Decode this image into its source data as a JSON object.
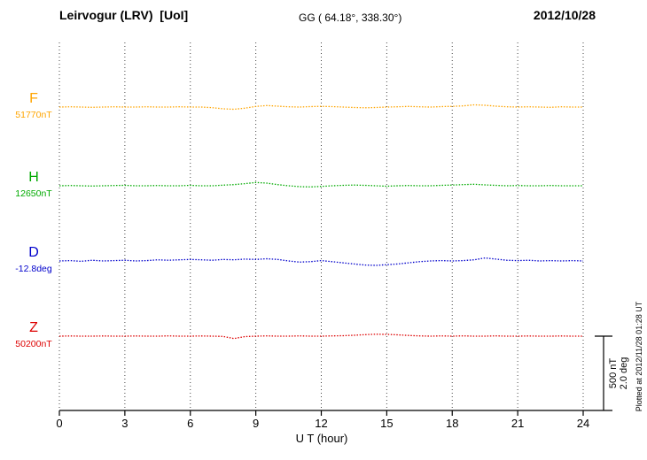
{
  "header": {
    "station_title": "Leirvogur (LRV)  [UoI]",
    "gg_coords": "GG ( 64.18°, 338.30°)",
    "date": "2012/10/28"
  },
  "footer": {
    "x_axis_label": "U T (hour)"
  },
  "side": {
    "scale_nt": "500 nT",
    "scale_deg": "2.0 deg",
    "plotted_at": "Plotted at 2012/11/28 01:28 UT"
  },
  "chart_data": {
    "type": "line",
    "title": "Leirvogur (LRV) magnetogram 2012/10/28",
    "xlabel": "U T (hour)",
    "x_range": [
      0,
      24
    ],
    "x_ticks": [
      0,
      3,
      6,
      9,
      12,
      15,
      18,
      21,
      24
    ],
    "grid": "vertical-dotted",
    "x_step": 0.5,
    "scale": {
      "nT_per_div": 500,
      "deg_per_div": 2.0
    },
    "series": [
      {
        "name": "F",
        "baseline_label": "51770nT",
        "baseline_value": 51770,
        "unit": "nT",
        "color": "#FFA500",
        "dev": [
          0,
          2,
          0,
          -2,
          0,
          2,
          0,
          0,
          2,
          0,
          0,
          2,
          0,
          0,
          -4,
          -12,
          -15,
          -8,
          4,
          10,
          6,
          2,
          0,
          3,
          5,
          3,
          0,
          -3,
          -5,
          -3,
          0,
          2,
          4,
          2,
          0,
          3,
          5,
          8,
          15,
          12,
          6,
          2,
          0,
          2,
          0,
          -2,
          2,
          0,
          0
        ]
      },
      {
        "name": "H",
        "baseline_label": "12650nT",
        "baseline_value": 12650,
        "unit": "nT",
        "color": "#00AA00",
        "dev": [
          0,
          2,
          0,
          -2,
          0,
          2,
          3,
          0,
          0,
          2,
          0,
          0,
          3,
          0,
          0,
          4,
          8,
          14,
          22,
          18,
          8,
          0,
          -6,
          -8,
          -4,
          0,
          3,
          5,
          3,
          0,
          -3,
          0,
          2,
          0,
          0,
          3,
          5,
          8,
          10,
          6,
          3,
          0,
          2,
          0,
          0,
          2,
          0,
          0,
          0
        ]
      },
      {
        "name": "D",
        "baseline_label": "-12.8deg",
        "baseline_value": -12.8,
        "unit": "deg",
        "color": "#0000CC",
        "dev": [
          0,
          0.01,
          -0.01,
          0.02,
          0,
          0.01,
          0.02,
          0,
          0.01,
          0.03,
          0.02,
          0.03,
          0.04,
          0.03,
          0.02,
          0.04,
          0.03,
          0.05,
          0.04,
          0.06,
          0.04,
          0,
          -0.03,
          -0.02,
          0.01,
          -0.02,
          -0.05,
          -0.08,
          -0.11,
          -0.12,
          -0.1,
          -0.08,
          -0.05,
          -0.02,
          0,
          0.01,
          0,
          0.01,
          0.03,
          0.08,
          0.05,
          0.02,
          0.01,
          0.02,
          0,
          0.01,
          0,
          0.01,
          0
        ]
      },
      {
        "name": "Z",
        "baseline_label": "50200nT",
        "baseline_value": 50200,
        "unit": "nT",
        "color": "#DD0000",
        "dev": [
          0,
          1,
          0,
          0,
          1,
          0,
          0,
          1,
          0,
          0,
          2,
          0,
          0,
          1,
          0,
          -2,
          -16,
          -3,
          0,
          2,
          0,
          0,
          2,
          0,
          0,
          2,
          3,
          6,
          10,
          13,
          12,
          9,
          5,
          2,
          0,
          2,
          0,
          2,
          0,
          0,
          2,
          0,
          0,
          1,
          0,
          0,
          1,
          0,
          0
        ]
      }
    ]
  }
}
